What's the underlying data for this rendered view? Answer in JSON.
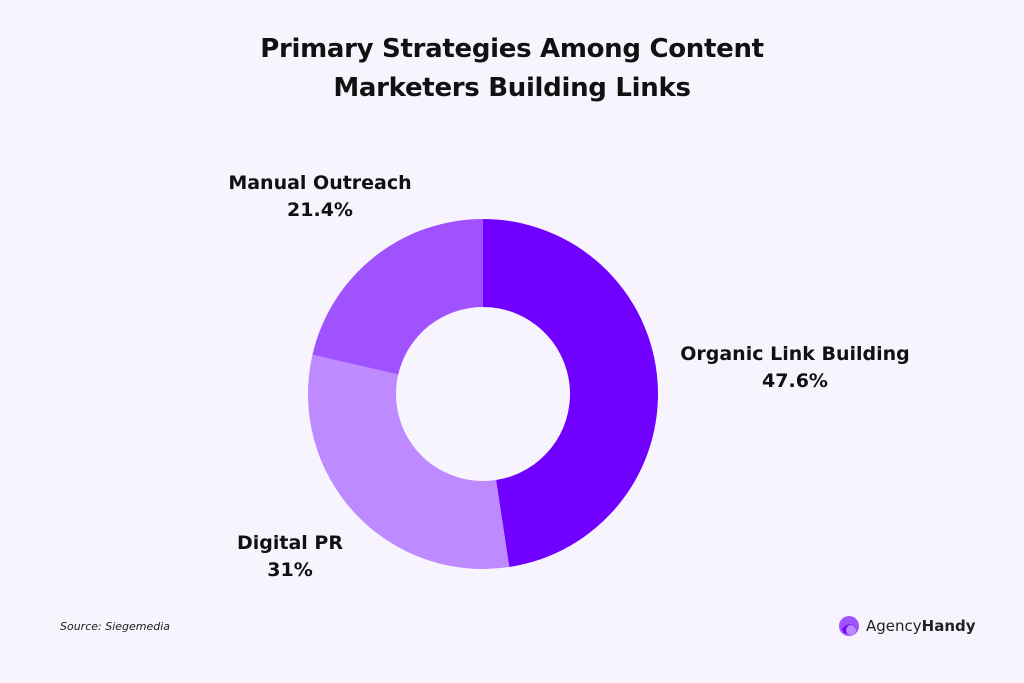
{
  "chart_data": {
    "type": "pie",
    "variant": "donut",
    "title_lines": [
      "Primary Strategies Among Content",
      "Marketers Building Links"
    ],
    "slices": [
      {
        "label": "Organic Link Building",
        "value": 47.6,
        "value_label": "47.6%",
        "color": "#7000ff"
      },
      {
        "label": "Digital PR",
        "value": 31,
        "value_label": "31%",
        "color": "#bd8aff"
      },
      {
        "label": "Manual Outreach",
        "value": 21.4,
        "value_label": "21.4%",
        "color": "#a052ff"
      }
    ],
    "start": "top, clockwise",
    "legend": "none (direct labels)"
  },
  "source": "Source: Siegemedia",
  "logo": {
    "text_regular": "Agency",
    "text_bold": "Handy",
    "icon": "agencyhandy-logo-icon"
  },
  "background": "#f7f4fd"
}
